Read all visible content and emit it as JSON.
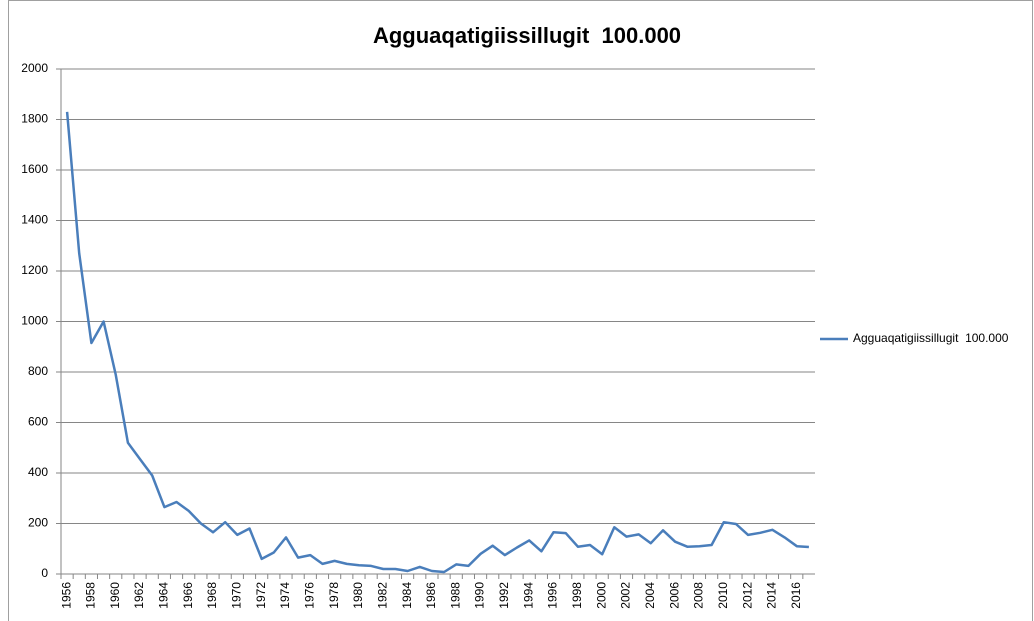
{
  "chart_data": {
    "type": "line",
    "title": "Agguaqatigiissillugit  100.000",
    "categories": [
      1956,
      null,
      1958,
      null,
      1960,
      null,
      1962,
      null,
      1964,
      null,
      1966,
      null,
      1968,
      null,
      1970,
      null,
      1972,
      null,
      1974,
      null,
      1976,
      null,
      1978,
      null,
      1980,
      null,
      1982,
      null,
      1984,
      null,
      1986,
      null,
      1988,
      null,
      1990,
      null,
      1992,
      null,
      1994,
      null,
      1996,
      null,
      1998,
      null,
      2000,
      null,
      2002,
      null,
      2004,
      null,
      2006,
      null,
      2008,
      null,
      2010,
      null,
      2012,
      null,
      2014,
      null,
      2016,
      null
    ],
    "series": [
      {
        "name": "Agguaqatigiissillugit  100.000",
        "color": "#4a7ebb",
        "values": [
          1830,
          1270,
          915,
          1000,
          790,
          520,
          455,
          390,
          265,
          285,
          250,
          200,
          165,
          205,
          155,
          180,
          60,
          85,
          145,
          65,
          75,
          40,
          52,
          40,
          35,
          32,
          20,
          20,
          12,
          28,
          12,
          8,
          38,
          32,
          80,
          112,
          75,
          105,
          133,
          90,
          165,
          162,
          108,
          115,
          78,
          185,
          148,
          157,
          122,
          173,
          128,
          108,
          110,
          115,
          205,
          198,
          155,
          163,
          175,
          145,
          110,
          107
        ]
      }
    ],
    "ylim": [
      0,
      2000
    ],
    "yticks": [
      0,
      200,
      400,
      600,
      800,
      1000,
      1200,
      1400,
      1600,
      1800,
      2000
    ],
    "grid": true,
    "legend": "right"
  }
}
